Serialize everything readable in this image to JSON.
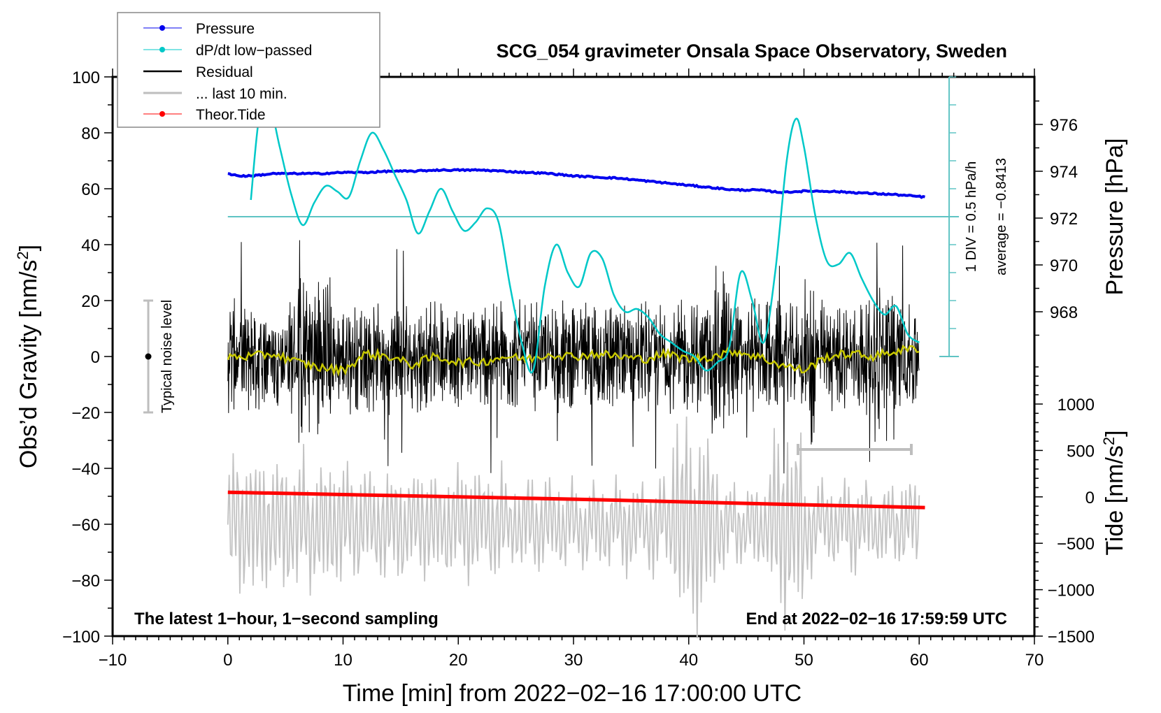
{
  "chart_data": {
    "type": "line",
    "title": "SCG_054 gravimeter Onsala Space Observatory, Sweden",
    "xlabel": "Time [min] from 2022−02−16 17:00:00 UTC",
    "ylabel_left": "Obs’d Gravity [nm/s²]",
    "ylabel_left_parts": {
      "main": "Obs’d Gravity [nm/s",
      "sup": "2",
      "end": "]"
    },
    "ylabel_right_top": "Pressure [hPa]",
    "ylabel_right_bottom_parts": {
      "main": "Tide [nm/s",
      "sup": "2",
      "end": "]"
    },
    "xlim": [
      -10,
      70
    ],
    "ylim_left": [
      -100,
      100
    ],
    "x_ticks": [
      -10,
      0,
      10,
      20,
      30,
      40,
      50,
      60,
      70
    ],
    "x_tick_labels": [
      "−10",
      "0",
      "10",
      "20",
      "30",
      "40",
      "50",
      "60",
      "70"
    ],
    "y_left_ticks": [
      -100,
      -80,
      -60,
      -40,
      -20,
      0,
      20,
      40,
      60,
      80,
      100
    ],
    "y_left_tick_labels": [
      "−100",
      "−80",
      "−60",
      "−40",
      "−20",
      "0",
      "20",
      "40",
      "60",
      "80",
      "100"
    ],
    "pressure_axis": {
      "ticks": [
        968,
        970,
        972,
        974,
        976
      ],
      "tick_labels": [
        "968",
        "970",
        "972",
        "974",
        "976"
      ],
      "range": [
        966,
        977.9
      ]
    },
    "tide_axis": {
      "ticks": [
        -1500,
        -1000,
        -500,
        0,
        500,
        1000
      ],
      "tick_labels": [
        "−1500",
        "−1000",
        "−500",
        "0",
        "500",
        "1000"
      ],
      "range": [
        -1500,
        1500
      ]
    },
    "legend": {
      "placement": "top-left",
      "entries": [
        {
          "label": "Pressure",
          "color": "#0000ee",
          "marker": "dot"
        },
        {
          "label": "dP/dt low−passed",
          "color": "#00c8c8",
          "marker": "dot"
        },
        {
          "label": "Residual",
          "color": "#000000",
          "marker": "none"
        },
        {
          "label": "... last 10 min.",
          "color": "#bebebe",
          "marker": "none"
        },
        {
          "label": "Theor.Tide",
          "color": "#ff0000",
          "marker": "dot"
        }
      ]
    },
    "annotations": {
      "bottom_left": "The latest 1−hour, 1−second sampling",
      "bottom_right": "End at 2022−02−16 17:59:59 UTC",
      "noise_label": "Typical noise level",
      "noise_range": [
        -20,
        20
      ],
      "dpdt_scale": "1 DIV = 0.5 hPa/h",
      "dpdt_average": "average = −0.8413",
      "last10_bar_range_min": [
        50,
        60
      ]
    },
    "series": [
      {
        "name": "Pressure",
        "axis": "pressure_hPa",
        "color": "#0000ee",
        "x": [
          0,
          1,
          2,
          4,
          6,
          8,
          10,
          12,
          14,
          16,
          18,
          20,
          22,
          24,
          26,
          28,
          30,
          32,
          34,
          36,
          38,
          40,
          42,
          44,
          46,
          48,
          50,
          52,
          54,
          56,
          58,
          60.5
        ],
        "y": [
          973.9,
          973.8,
          973.8,
          973.9,
          973.9,
          973.9,
          973.95,
          973.95,
          974.0,
          974.0,
          974.05,
          974.05,
          974.05,
          974.0,
          973.95,
          973.9,
          973.8,
          973.75,
          973.7,
          973.6,
          973.5,
          973.4,
          973.3,
          973.2,
          973.2,
          973.1,
          973.15,
          973.15,
          973.1,
          973.05,
          973.0,
          972.9
        ]
      },
      {
        "name": "dP/dt low-passed",
        "axis": "gravity_left_units",
        "color": "#00c8c8",
        "x": [
          2,
          2.7,
          3.5,
          4.5,
          5.5,
          6.5,
          7.5,
          8.5,
          9.5,
          10.5,
          11.5,
          12.5,
          13.5,
          14.5,
          15.5,
          16.5,
          17.5,
          18.5,
          19.5,
          20.5,
          21.5,
          22.5,
          23.5,
          24.5,
          25.5,
          26.5,
          27.5,
          28.5,
          29.5,
          30.5,
          31.5,
          32.5,
          33.5,
          34.5,
          35.5,
          36.5,
          37.5,
          38.5,
          39.5,
          40.5,
          41.5,
          42.5,
          43.5,
          44.5,
          45.5,
          46.5,
          47.5,
          48.5,
          49.3,
          50,
          51,
          52,
          53,
          54,
          55,
          56,
          57,
          58,
          59,
          60
        ],
        "y": [
          56,
          85,
          92,
          75,
          58,
          47,
          55,
          61,
          59,
          57,
          70,
          80,
          74,
          65,
          56,
          44,
          52,
          60,
          52,
          45,
          48,
          53,
          48,
          25,
          5,
          -5,
          25,
          40,
          30,
          25,
          37,
          35,
          22,
          16,
          17,
          14,
          8,
          5,
          2,
          0,
          -5,
          -2,
          3,
          30,
          20,
          5,
          30,
          70,
          85,
          75,
          50,
          34,
          33,
          37,
          28,
          20,
          15,
          18,
          8,
          5
        ]
      },
      {
        "name": "Residual smoothed",
        "axis": "gravity",
        "color": "#c8c800",
        "x": [
          0,
          2,
          4,
          6,
          8,
          10,
          12,
          14,
          16,
          18,
          20,
          22,
          24,
          26,
          28,
          30,
          32,
          34,
          36,
          38,
          40,
          42,
          44,
          46,
          48,
          50,
          52,
          54,
          56,
          58,
          60
        ],
        "y": [
          0,
          0,
          1,
          -2,
          -4,
          -5,
          1,
          0,
          -3,
          0,
          -2,
          -2,
          0,
          -1,
          1,
          0,
          1,
          0,
          -1,
          1,
          -1,
          0,
          2,
          0,
          -3,
          -5,
          0,
          1,
          0,
          2,
          3
        ]
      },
      {
        "name": "Residual",
        "axis": "gravity",
        "color": "#000000",
        "x_range": [
          0,
          60
        ],
        "amplitude_envelope": "approx ±15 nm/s² typical, spikes to ±40"
      },
      {
        "name": "... last 10 min.",
        "axis": "tide_nm_s2",
        "color": "#bebebe",
        "x_range": [
          0,
          60
        ],
        "amplitude_envelope": "approx ±700 nm/s², bursts to ±1300 around 39–42 and 47–50 min"
      },
      {
        "name": "Theor.Tide",
        "axis": "tide_nm_s2",
        "color": "#ff0000",
        "x": [
          0,
          10,
          20,
          30,
          40,
          50,
          60.5
        ],
        "y": [
          50,
          25,
          0,
          -25,
          -55,
          -85,
          -115
        ]
      }
    ]
  }
}
